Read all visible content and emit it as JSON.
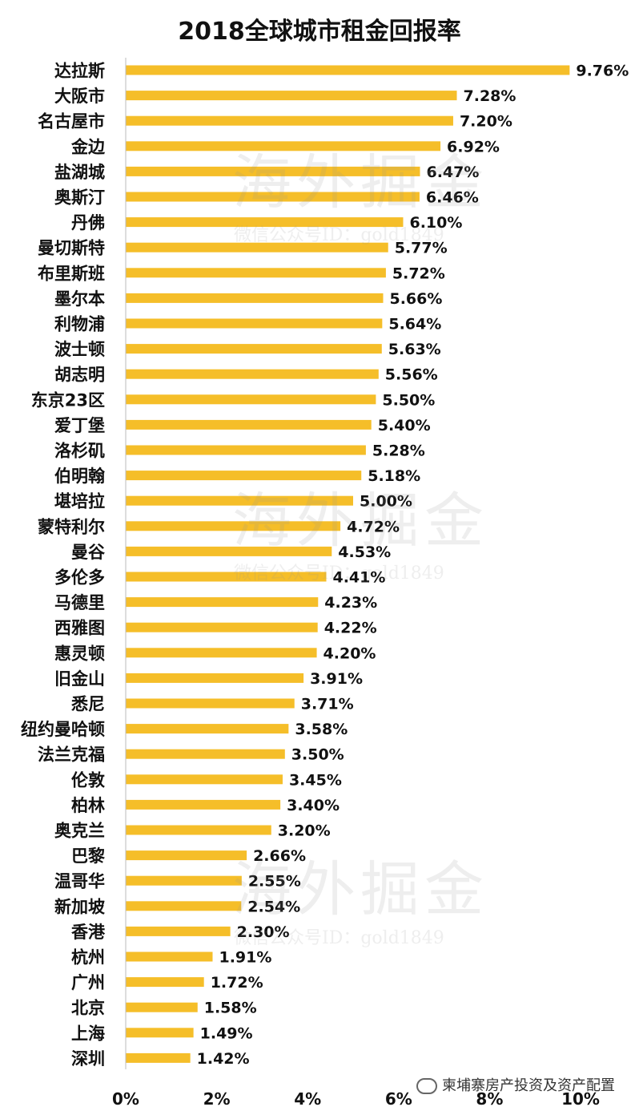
{
  "chart_data": {
    "type": "bar",
    "orientation": "horizontal",
    "title": "2018全球城市租金回报率",
    "categories": [
      "达拉斯",
      "大阪市",
      "名古屋市",
      "金边",
      "盐湖城",
      "奥斯汀",
      "丹佛",
      "曼切斯特",
      "布里斯班",
      "墨尔本",
      "利物浦",
      "波士顿",
      "胡志明",
      "东京23区",
      "爱丁堡",
      "洛杉矶",
      "伯明翰",
      "堪培拉",
      "蒙特利尔",
      "曼谷",
      "多伦多",
      "马德里",
      "西雅图",
      "惠灵顿",
      "旧金山",
      "悉尼",
      "纽约曼哈顿",
      "法兰克福",
      "伦敦",
      "柏林",
      "奥克兰",
      "巴黎",
      "温哥华",
      "新加坡",
      "香港",
      "杭州",
      "广州",
      "北京",
      "上海",
      "深圳"
    ],
    "values": [
      9.76,
      7.28,
      7.2,
      6.92,
      6.47,
      6.46,
      6.1,
      5.77,
      5.72,
      5.66,
      5.64,
      5.63,
      5.56,
      5.5,
      5.4,
      5.28,
      5.18,
      5.0,
      4.72,
      4.53,
      4.41,
      4.23,
      4.22,
      4.2,
      3.91,
      3.71,
      3.58,
      3.5,
      3.45,
      3.4,
      3.2,
      2.66,
      2.55,
      2.54,
      2.3,
      1.91,
      1.72,
      1.58,
      1.49,
      1.42
    ],
    "labels": [
      "9.76%",
      "7.28%",
      "7.20%",
      "6.92%",
      "6.47%",
      "6.46%",
      "6.10%",
      "5.77%",
      "5.72%",
      "5.66%",
      "5.64%",
      "5.63%",
      "5.56%",
      "5.50%",
      "5.40%",
      "5.28%",
      "5.18%",
      "5.00%",
      "4.72%",
      "4.53%",
      "4.41%",
      "4.23%",
      "4.22%",
      "4.20%",
      "3.91%",
      "3.71%",
      "3.58%",
      "3.50%",
      "3.45%",
      "3.40%",
      "3.20%",
      "2.66%",
      "2.55%",
      "2.54%",
      "2.30%",
      "1.91%",
      "1.72%",
      "1.58%",
      "1.49%",
      "1.42%"
    ],
    "xlim": [
      0,
      10
    ],
    "xticks": [
      "0%",
      "2%",
      "4%",
      "6%",
      "8%",
      "10%"
    ],
    "grid": false,
    "bar_color": "#F5BE29"
  },
  "watermarks": {
    "main": "海外掘金",
    "sub1": "微信公众号ID：gold1849",
    "sub2": "微信公众号ID：gold1849",
    "sub3": "微信公众号ID：gold1849"
  },
  "footer": {
    "text": "柬埔寨房产投资及资产配置"
  }
}
